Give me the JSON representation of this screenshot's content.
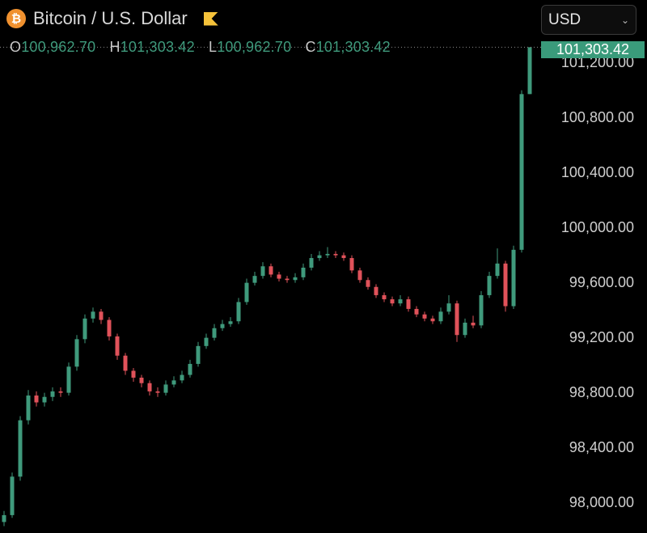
{
  "header": {
    "title": "Bitcoin / U.S. Dollar",
    "logo_icon": "bitcoin-icon",
    "flag_icon": "flag-icon"
  },
  "currency_select": {
    "value": "USD"
  },
  "legend": {
    "o_label": "O",
    "o": "100,962.70",
    "h_label": "H",
    "h": "101,303.42",
    "l_label": "L",
    "l": "100,962.70",
    "c_label": "C",
    "c": "101,303.42"
  },
  "last_price_label": "101,303.42",
  "colors": {
    "up": "#3f9a7c",
    "down": "#e0525a",
    "background": "#000000",
    "axis_text": "#cfcfcf",
    "last_price_bg": "#3a9b7b"
  },
  "chart_data": {
    "type": "candlestick",
    "title": "Bitcoin / U.S. Dollar",
    "ylim": [
      97770,
      101647
    ],
    "grid": false,
    "y_ticks": [
      98000,
      98400,
      98800,
      99200,
      99600,
      100000,
      100400,
      100800,
      101200
    ],
    "y_tick_labels": [
      "98,000.00",
      "98,400.00",
      "98,800.00",
      "99,200.00",
      "99,600.00",
      "100,000.00",
      "100,400.00",
      "100,800.00",
      "101,200.00"
    ],
    "last_price": 101303.42,
    "ohlc": [
      [
        97850,
        97930,
        97820,
        97900
      ],
      [
        97900,
        98210,
        97880,
        98180
      ],
      [
        98180,
        98620,
        98150,
        98590
      ],
      [
        98590,
        98810,
        98560,
        98770
      ],
      [
        98770,
        98800,
        98690,
        98720
      ],
      [
        98720,
        98790,
        98690,
        98760
      ],
      [
        98760,
        98830,
        98730,
        98800
      ],
      [
        98800,
        98830,
        98760,
        98790
      ],
      [
        98790,
        99010,
        98770,
        98980
      ],
      [
        98980,
        99210,
        98950,
        99180
      ],
      [
        99180,
        99360,
        99150,
        99330
      ],
      [
        99330,
        99410,
        99300,
        99380
      ],
      [
        99380,
        99400,
        99290,
        99320
      ],
      [
        99320,
        99340,
        99170,
        99200
      ],
      [
        99200,
        99220,
        99030,
        99060
      ],
      [
        99060,
        99080,
        98920,
        98950
      ],
      [
        98950,
        98970,
        98870,
        98900
      ],
      [
        98900,
        98920,
        98830,
        98860
      ],
      [
        98860,
        98880,
        98770,
        98800
      ],
      [
        98800,
        98830,
        98760,
        98790
      ],
      [
        98790,
        98880,
        98770,
        98850
      ],
      [
        98850,
        98910,
        98830,
        98880
      ],
      [
        98880,
        98950,
        98860,
        98920
      ],
      [
        98920,
        99030,
        98900,
        99000
      ],
      [
        99000,
        99160,
        98980,
        99130
      ],
      [
        99130,
        99220,
        99110,
        99190
      ],
      [
        99190,
        99290,
        99170,
        99260
      ],
      [
        99260,
        99320,
        99240,
        99290
      ],
      [
        99290,
        99340,
        99270,
        99310
      ],
      [
        99310,
        99480,
        99290,
        99450
      ],
      [
        99450,
        99620,
        99430,
        99590
      ],
      [
        99590,
        99670,
        99570,
        99640
      ],
      [
        99640,
        99740,
        99620,
        99710
      ],
      [
        99710,
        99730,
        99630,
        99650
      ],
      [
        99650,
        99670,
        99600,
        99620
      ],
      [
        99620,
        99640,
        99590,
        99610
      ],
      [
        99610,
        99660,
        99590,
        99630
      ],
      [
        99630,
        99730,
        99610,
        99700
      ],
      [
        99700,
        99800,
        99680,
        99770
      ],
      [
        99770,
        99820,
        99750,
        99790
      ],
      [
        99790,
        99850,
        99770,
        99800
      ],
      [
        99800,
        99820,
        99770,
        99790
      ],
      [
        99790,
        99810,
        99750,
        99770
      ],
      [
        99770,
        99790,
        99660,
        99680
      ],
      [
        99680,
        99700,
        99590,
        99610
      ],
      [
        99610,
        99630,
        99540,
        99560
      ],
      [
        99560,
        99580,
        99480,
        99500
      ],
      [
        99500,
        99520,
        99450,
        99470
      ],
      [
        99470,
        99490,
        99420,
        99440
      ],
      [
        99440,
        99500,
        99420,
        99470
      ],
      [
        99470,
        99490,
        99380,
        99400
      ],
      [
        99400,
        99420,
        99340,
        99360
      ],
      [
        99360,
        99380,
        99310,
        99330
      ],
      [
        99330,
        99350,
        99290,
        99310
      ],
      [
        99310,
        99410,
        99290,
        99380
      ],
      [
        99380,
        99500,
        99360,
        99440
      ],
      [
        99440,
        99460,
        99160,
        99210
      ],
      [
        99210,
        99330,
        99190,
        99300
      ],
      [
        99300,
        99350,
        99260,
        99280
      ],
      [
        99280,
        99530,
        99260,
        99500
      ],
      [
        99500,
        99670,
        99480,
        99640
      ],
      [
        99640,
        99840,
        99620,
        99730
      ],
      [
        99730,
        99750,
        99380,
        99420
      ],
      [
        99420,
        99860,
        99400,
        99830
      ],
      [
        99830,
        100990,
        99810,
        100962.7
      ],
      [
        100962.7,
        101303.42,
        100962.7,
        101303.42
      ]
    ]
  }
}
